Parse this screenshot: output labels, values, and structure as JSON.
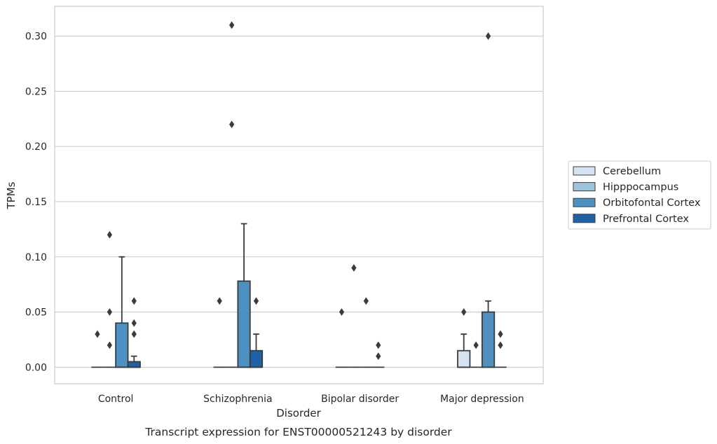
{
  "chart_data": {
    "type": "box",
    "title": "",
    "caption": "Transcript expression for ENST00000521243 by disorder",
    "xlabel": "Disorder",
    "ylabel": "TPMs",
    "ylim": [
      -0.015,
      0.327
    ],
    "yticks": [
      0.0,
      0.05,
      0.1,
      0.15,
      0.2,
      0.25,
      0.3
    ],
    "ytick_labels": [
      "0.00",
      "0.05",
      "0.10",
      "0.15",
      "0.20",
      "0.25",
      "0.30"
    ],
    "grid": "horizontal",
    "legend_position": "right",
    "categories": [
      "Control",
      "Schizophrenia",
      "Bipolar disorder",
      "Major depression"
    ],
    "series": [
      {
        "name": "Cerebellum",
        "color": "#d4e3f1",
        "boxes": [
          {
            "q1": 0,
            "median": 0,
            "q3": 0,
            "whisker_low": 0,
            "whisker_high": 0,
            "outliers": [
              0.03
            ]
          },
          {
            "q1": 0,
            "median": 0,
            "q3": 0,
            "whisker_low": 0,
            "whisker_high": 0,
            "outliers": [
              0.06
            ]
          },
          {
            "q1": 0,
            "median": 0,
            "q3": 0,
            "whisker_low": 0,
            "whisker_high": 0,
            "outliers": [
              0.05
            ]
          },
          {
            "q1": 0,
            "median": 0,
            "q3": 0.015,
            "whisker_low": 0,
            "whisker_high": 0.03,
            "outliers": [
              0.05
            ]
          }
        ]
      },
      {
        "name": "Hipppocampus",
        "color": "#9cc4dc",
        "boxes": [
          {
            "q1": 0,
            "median": 0,
            "q3": 0,
            "whisker_low": 0,
            "whisker_high": 0,
            "outliers": [
              0.12,
              0.05,
              0.02
            ]
          },
          {
            "q1": 0,
            "median": 0,
            "q3": 0,
            "whisker_low": 0,
            "whisker_high": 0,
            "outliers": [
              0.31,
              0.22
            ]
          },
          {
            "q1": 0,
            "median": 0,
            "q3": 0,
            "whisker_low": 0,
            "whisker_high": 0,
            "outliers": [
              0.09
            ]
          },
          {
            "q1": 0,
            "median": 0,
            "q3": 0,
            "whisker_low": 0,
            "whisker_high": 0,
            "outliers": [
              0.02
            ]
          }
        ]
      },
      {
        "name": "Orbitofontal Cortex",
        "color": "#4e90c0",
        "boxes": [
          {
            "q1": 0,
            "median": 0,
            "q3": 0.04,
            "whisker_low": 0,
            "whisker_high": 0.1,
            "outliers": []
          },
          {
            "q1": 0,
            "median": 0,
            "q3": 0.078,
            "whisker_low": 0,
            "whisker_high": 0.13,
            "outliers": []
          },
          {
            "q1": 0,
            "median": 0,
            "q3": 0,
            "whisker_low": 0,
            "whisker_high": 0,
            "outliers": [
              0.06
            ]
          },
          {
            "q1": 0,
            "median": 0,
            "q3": 0.05,
            "whisker_low": 0,
            "whisker_high": 0.06,
            "outliers": [
              0.3
            ]
          }
        ]
      },
      {
        "name": "Prefrontal Cortex",
        "color": "#2161a5",
        "boxes": [
          {
            "q1": 0,
            "median": 0,
            "q3": 0.005,
            "whisker_low": 0,
            "whisker_high": 0.01,
            "outliers": [
              0.06,
              0.04,
              0.03
            ]
          },
          {
            "q1": 0,
            "median": 0,
            "q3": 0.015,
            "whisker_low": 0,
            "whisker_high": 0.03,
            "outliers": [
              0.06
            ]
          },
          {
            "q1": 0,
            "median": 0,
            "q3": 0,
            "whisker_low": 0,
            "whisker_high": 0,
            "outliers": [
              0.02,
              0.01
            ]
          },
          {
            "q1": 0,
            "median": 0,
            "q3": 0,
            "whisker_low": 0,
            "whisker_high": 0,
            "outliers": [
              0.03,
              0.02
            ]
          }
        ]
      }
    ]
  }
}
